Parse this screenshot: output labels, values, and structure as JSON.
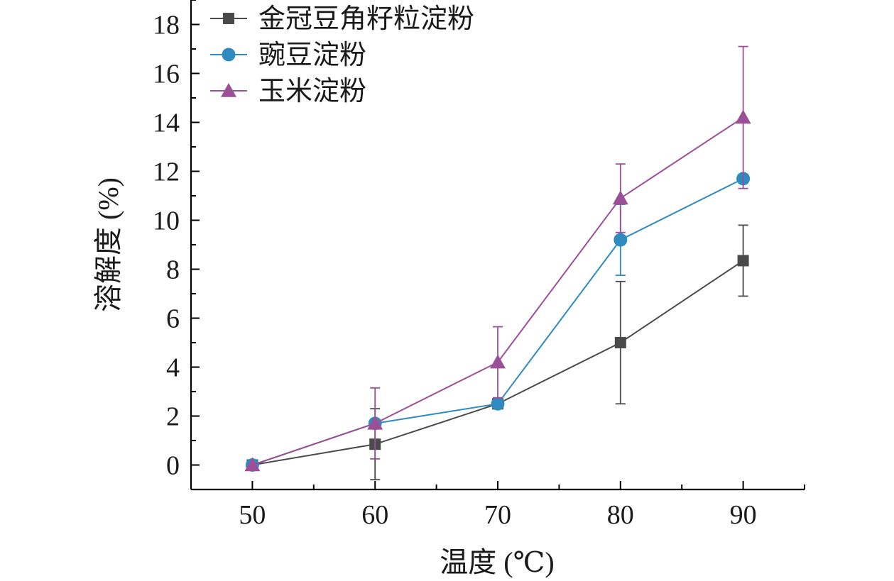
{
  "chart_data": {
    "type": "line",
    "title": "",
    "xlabel": "温度 (℃)",
    "ylabel": "溶解度 (%)",
    "x": [
      50,
      60,
      70,
      80,
      90
    ],
    "x_ticks": [
      "50",
      "60",
      "70",
      "80",
      "90"
    ],
    "y_ticks": [
      "0",
      "2",
      "4",
      "6",
      "8",
      "10",
      "12",
      "14",
      "16",
      "18"
    ],
    "xlim": [
      45,
      95
    ],
    "ylim": [
      -1,
      19
    ],
    "grid": false,
    "legend_position": "top-left",
    "series": [
      {
        "name": "金冠豆角籽粒淀粉",
        "marker": "square",
        "color": "#4a4a4a",
        "values": [
          0.0,
          0.85,
          2.5,
          5.0,
          8.35
        ],
        "errors": [
          0.0,
          1.45,
          0.0,
          2.5,
          1.45
        ]
      },
      {
        "name": "豌豆淀粉",
        "marker": "circle",
        "color": "#2e8bc0",
        "values": [
          0.0,
          1.7,
          2.5,
          9.2,
          11.7
        ],
        "errors": [
          0.0,
          0.0,
          0.0,
          1.45,
          0.0
        ]
      },
      {
        "name": "玉米淀粉",
        "marker": "triangle",
        "color": "#9b4f96",
        "values": [
          0.0,
          1.7,
          4.2,
          10.9,
          14.2
        ],
        "errors": [
          0.0,
          1.45,
          1.45,
          1.4,
          2.9
        ]
      }
    ]
  }
}
